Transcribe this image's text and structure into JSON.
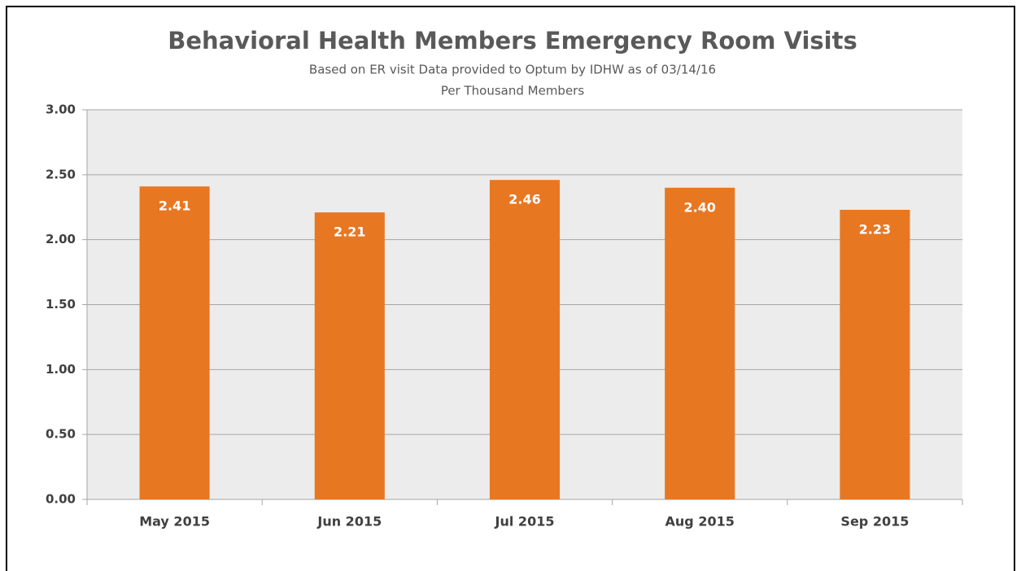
{
  "chart_data": {
    "type": "bar",
    "title": "Behavioral Health Members Emergency Room Visits",
    "subtitle": [
      "Based on ER visit Data provided to Optum by IDHW as of 03/14/16",
      "Per Thousand Members"
    ],
    "categories": [
      "May 2015",
      "Jun 2015",
      "Jul 2015",
      "Aug 2015",
      "Sep 2015"
    ],
    "values": [
      2.41,
      2.21,
      2.46,
      2.4,
      2.23
    ],
    "value_labels": [
      "2.41",
      "2.21",
      "2.46",
      "2.40",
      "2.23"
    ],
    "color": "#e87722",
    "ylim": [
      0,
      3
    ],
    "yticks": [
      {
        "value": 0,
        "label": "0.00"
      },
      {
        "value": 0.5,
        "label": "0.50"
      },
      {
        "value": 1,
        "label": "1.00"
      },
      {
        "value": 1.5,
        "label": "1.50"
      },
      {
        "value": 2,
        "label": "2.00"
      },
      {
        "value": 2.5,
        "label": "2.50"
      },
      {
        "value": 3,
        "label": "3.00"
      }
    ],
    "grid": true
  }
}
